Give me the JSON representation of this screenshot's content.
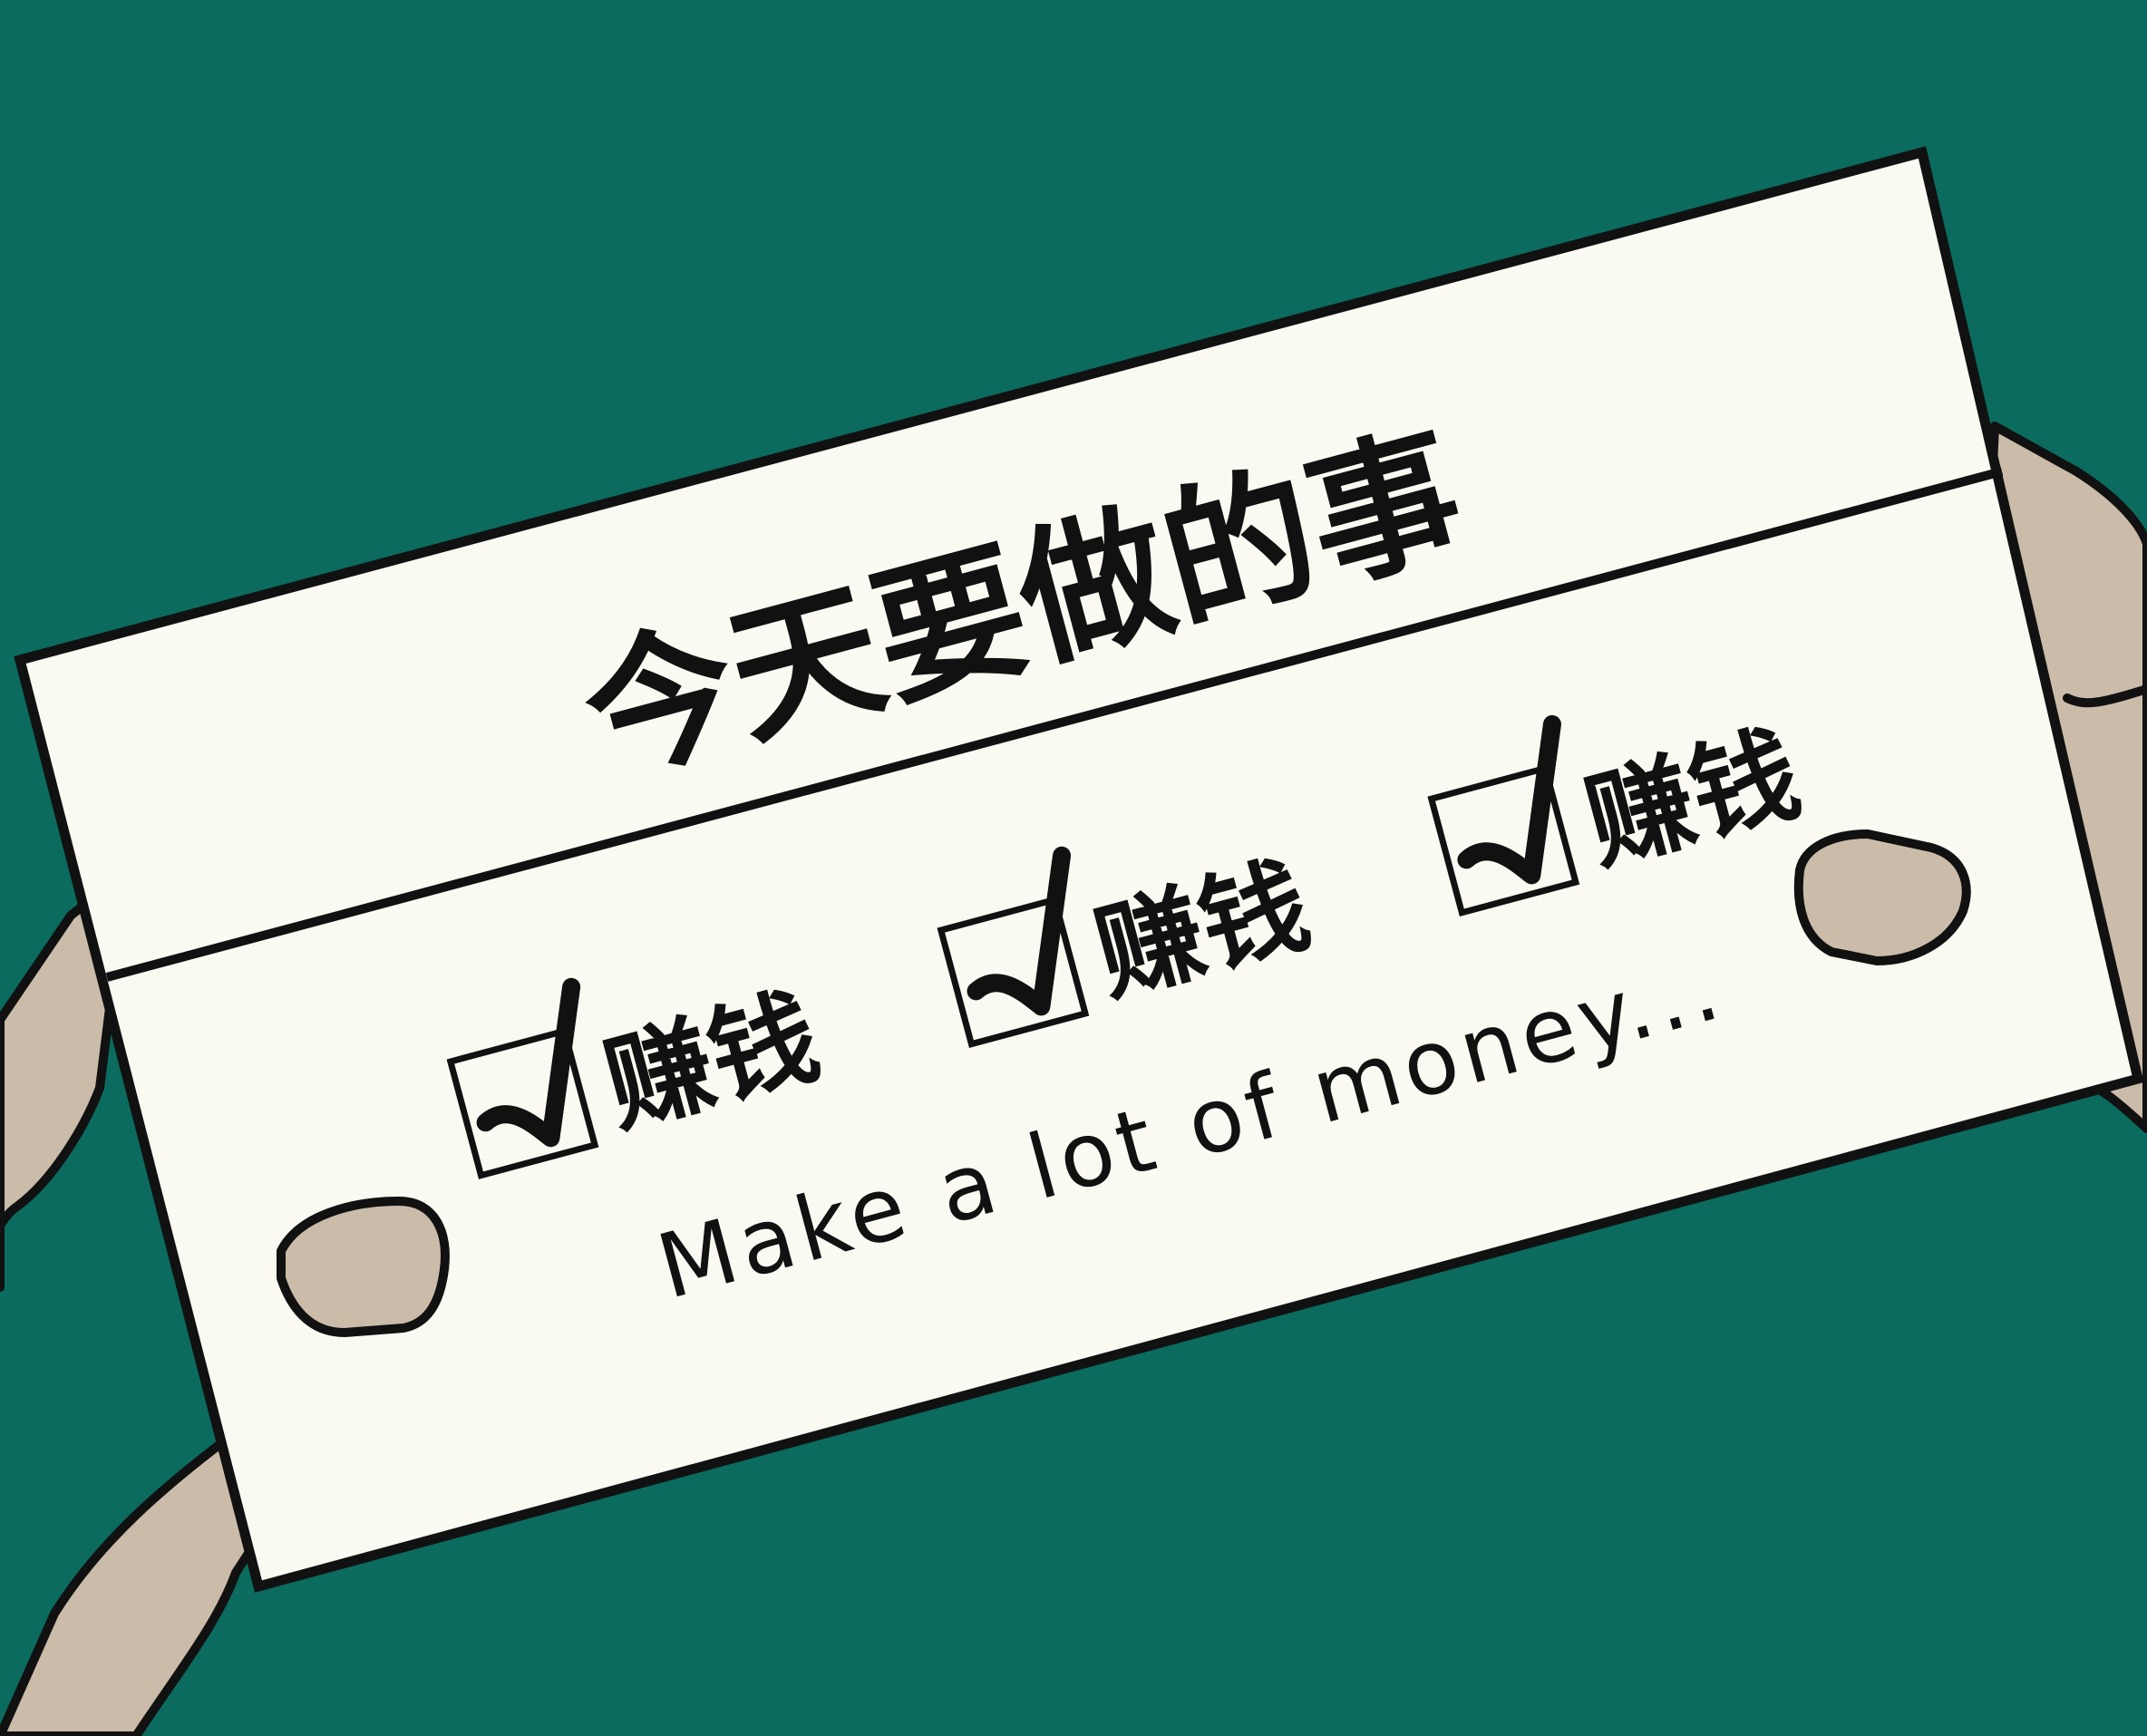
{
  "colors": {
    "background": "#0b6b5f",
    "paper": "#fbfaf2",
    "skin": "#cbbca9",
    "ink": "#111111"
  },
  "note": {
    "title": "今天要做的事",
    "items": [
      {
        "label": "赚钱",
        "checked": true
      },
      {
        "label": "赚钱",
        "checked": true
      },
      {
        "label": "赚钱",
        "checked": true
      }
    ],
    "caption": "Make a lot of money..."
  }
}
